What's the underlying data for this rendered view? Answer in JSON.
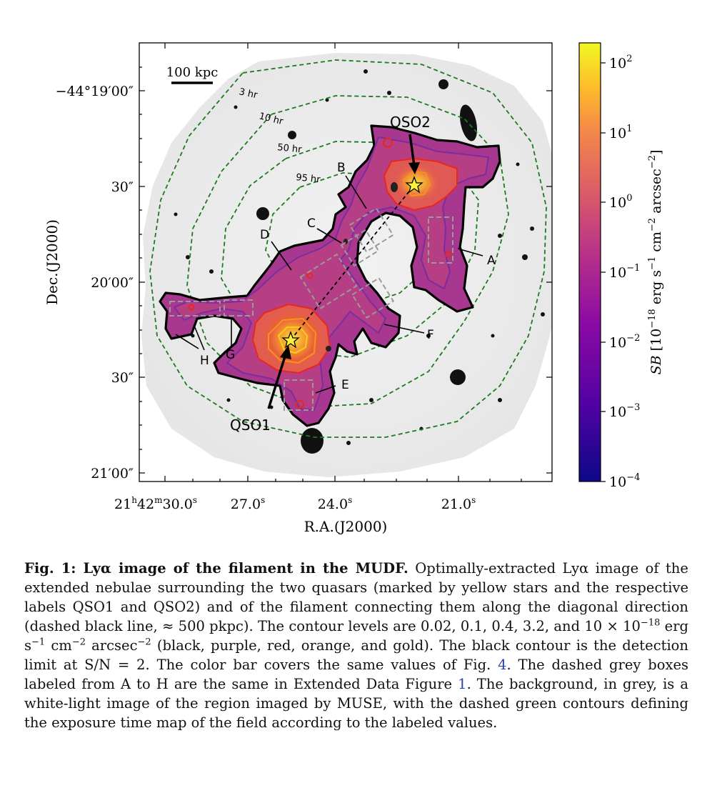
{
  "figure": {
    "scalebar_label": "100 kpc",
    "dec_ticks": [
      "−44°19′00″",
      "30″",
      "20′00″",
      "30″",
      "21′00″"
    ],
    "ra_ticks": [
      "21h42m30.0s",
      "27.0s",
      "24.0s",
      "21.0s"
    ],
    "xlabel": "R.A.(J2000)",
    "ylabel": "Dec.(J2000)",
    "colorbar": {
      "label": "SB [10^-18 erg s^-1 cm^-2 arcsec^-2]",
      "ticks": [
        "10^2",
        "10^1",
        "10^0",
        "10^-1",
        "10^-2",
        "10^-3",
        "10^-4"
      ],
      "colors": [
        "#0d0887",
        "#6a00a8",
        "#b12a90",
        "#e16462",
        "#fca636",
        "#f0f921"
      ]
    },
    "exposure_labels": [
      "3 hr",
      "10 hr",
      "50 hr",
      "95 hr"
    ],
    "sources": [
      "QSO1",
      "QSO2"
    ],
    "regions": [
      "A",
      "B",
      "C",
      "D",
      "E",
      "F",
      "G",
      "H"
    ],
    "contour_colors": {
      "exposure": "#1e7a1e",
      "box": "#9a9a9a",
      "black": "#000000",
      "purple": "#7b2d9f",
      "red": "#e8271d",
      "orange": "#f7931e",
      "gold": "#f5d116"
    }
  },
  "caption": {
    "fig_label": "Fig. 1",
    "title": "Lyα image of the filament in the MUDF.",
    "p1": "Optimally-extracted Lyα image of the extended nebulae surrounding the two quasars (marked by yellow stars and the respective labels QSO1 and QSO2) and of the filament connecting them along the diagonal direction (dashed black line, ≈ 500 pkpc). The contour levels are 0.02, 0.1, 0.4, 3.2, and 10 × 10",
    "exp1": "−18",
    "units_a": " erg s",
    "exp2": "−1",
    "units_b": " cm",
    "exp3": "−2",
    "units_c": " arcsec",
    "exp4": "−2",
    "p2": " (black, purple, red, orange, and gold). The black contour is the detection limit at S/N = 2. The color bar covers the same values of Fig. ",
    "ref1": "4",
    "p3": ". The dashed grey boxes labeled from A to H are the same in Extended Data Figure ",
    "ref2": "1",
    "p4": ". The background, in grey, is a white-light image of the region imaged by MUSE, with the dashed green contours defining the exposure time map of the field according to the labeled values."
  }
}
